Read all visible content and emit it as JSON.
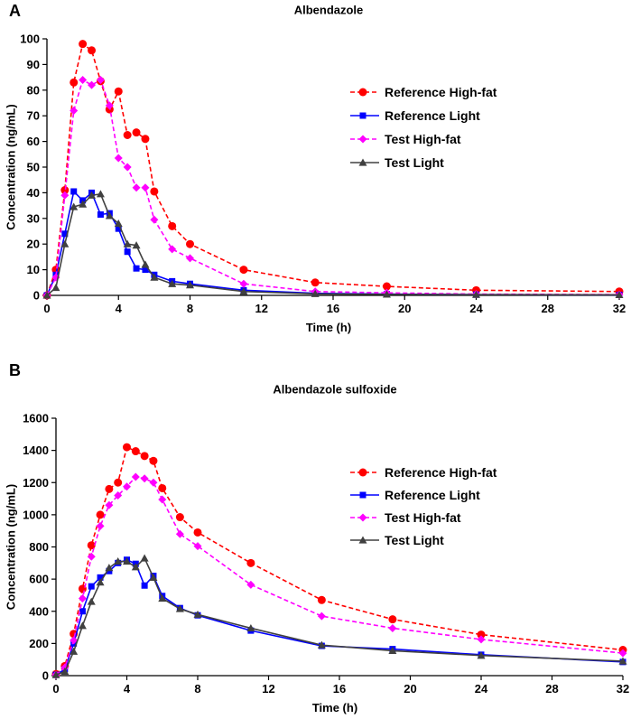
{
  "chart_data": [
    {
      "type": "line",
      "panel_label": "A",
      "title": "Albendazole",
      "xlabel": "Time (h)",
      "ylabel": "Concentration (ng/mL)",
      "xlim": [
        0,
        32
      ],
      "ylim": [
        0,
        100
      ],
      "xticks": [
        0,
        4,
        8,
        12,
        16,
        20,
        24,
        28,
        32
      ],
      "yticks": [
        0,
        10,
        20,
        30,
        40,
        50,
        60,
        70,
        80,
        90,
        100
      ],
      "legend_position": "top-right",
      "series": [
        {
          "name": "Reference High-fat",
          "color": "#ff0000",
          "dashed": true,
          "marker": "circle",
          "x": [
            0,
            0.5,
            1,
            1.5,
            2,
            2.5,
            3,
            3.5,
            4,
            4.5,
            5,
            5.5,
            6,
            7,
            8,
            11,
            15,
            19,
            24,
            32
          ],
          "y": [
            0,
            10,
            41,
            83,
            98,
            95.5,
            83.5,
            72.5,
            79.5,
            62.5,
            63.5,
            61,
            40.5,
            27,
            20,
            10,
            5,
            3.5,
            2,
            1.5
          ]
        },
        {
          "name": "Reference Light",
          "color": "#0000ff",
          "dashed": false,
          "marker": "square",
          "x": [
            0,
            0.5,
            1,
            1.5,
            2,
            2.5,
            3,
            3.5,
            4,
            4.5,
            5,
            5.5,
            6,
            7,
            8,
            11,
            15,
            19,
            24,
            32
          ],
          "y": [
            0,
            8,
            24,
            40.5,
            37,
            40,
            31.5,
            32,
            26,
            17,
            10.5,
            10,
            8,
            5.5,
            4.5,
            2,
            0.8,
            0.5,
            0.3,
            0.2
          ]
        },
        {
          "name": "Test High-fat",
          "color": "#ff00ff",
          "dashed": true,
          "marker": "diamond",
          "x": [
            0,
            0.5,
            1,
            1.5,
            2,
            2.5,
            3,
            3.5,
            4,
            4.5,
            5,
            5.5,
            6,
            7,
            8,
            11,
            15,
            19,
            24,
            32
          ],
          "y": [
            0,
            7,
            39,
            72,
            84,
            82,
            84,
            74,
            53.5,
            50,
            42,
            42,
            29.5,
            18,
            14.5,
            4.5,
            1.5,
            1,
            0.5,
            0.3
          ]
        },
        {
          "name": "Test Light",
          "color": "#404040",
          "dashed": false,
          "marker": "triangle",
          "x": [
            0,
            0.5,
            1,
            1.5,
            2,
            2.5,
            3,
            3.5,
            4,
            4.5,
            5,
            5.5,
            6,
            7,
            8,
            11,
            15,
            19,
            24,
            32
          ],
          "y": [
            0,
            3,
            20,
            34.5,
            35.5,
            39,
            39.5,
            31,
            28,
            20,
            19.5,
            12,
            7,
            4.5,
            4,
            1.5,
            0.6,
            0.4,
            0.3,
            0.2
          ]
        }
      ]
    },
    {
      "type": "line",
      "panel_label": "B",
      "title": "Albendazole sulfoxide",
      "xlabel": "Time (h)",
      "ylabel": "Concentration (ng/mL)",
      "xlim": [
        0,
        32
      ],
      "ylim": [
        0,
        1600
      ],
      "xticks": [
        0,
        4,
        8,
        12,
        16,
        20,
        24,
        28,
        32
      ],
      "yticks": [
        0,
        200,
        400,
        600,
        800,
        1000,
        1200,
        1400,
        1600
      ],
      "legend_position": "top-right",
      "series": [
        {
          "name": "Reference High-fat",
          "color": "#ff0000",
          "dashed": true,
          "marker": "circle",
          "x": [
            0,
            0.5,
            1,
            1.5,
            2,
            2.5,
            3,
            3.5,
            4,
            4.5,
            5,
            5.5,
            6,
            7,
            8,
            11,
            15,
            19,
            24,
            32
          ],
          "y": [
            10,
            60,
            260,
            540,
            810,
            1000,
            1160,
            1200,
            1420,
            1395,
            1365,
            1335,
            1165,
            985,
            890,
            700,
            470,
            350,
            255,
            160
          ]
        },
        {
          "name": "Reference Light",
          "color": "#0000ff",
          "dashed": false,
          "marker": "square",
          "x": [
            0,
            0.5,
            1,
            1.5,
            2,
            2.5,
            3,
            3.5,
            4,
            4.5,
            5,
            5.5,
            6,
            7,
            8,
            11,
            15,
            19,
            24,
            32
          ],
          "y": [
            5,
            40,
            200,
            400,
            555,
            610,
            650,
            700,
            720,
            695,
            560,
            620,
            495,
            420,
            375,
            280,
            185,
            165,
            130,
            85
          ]
        },
        {
          "name": "Test High-fat",
          "color": "#ff00ff",
          "dashed": true,
          "marker": "diamond",
          "x": [
            0,
            0.5,
            1,
            1.5,
            2,
            2.5,
            3,
            3.5,
            4,
            4.5,
            5,
            5.5,
            6,
            7,
            8,
            11,
            15,
            19,
            24,
            32
          ],
          "y": [
            5,
            50,
            220,
            480,
            740,
            930,
            1060,
            1120,
            1175,
            1235,
            1225,
            1200,
            1095,
            880,
            805,
            565,
            370,
            295,
            225,
            140
          ]
        },
        {
          "name": "Test Light",
          "color": "#404040",
          "dashed": false,
          "marker": "triangle",
          "x": [
            0,
            0.5,
            1,
            1.5,
            2,
            2.5,
            3,
            3.5,
            4,
            4.5,
            5,
            5.5,
            6,
            7,
            8,
            11,
            15,
            19,
            24,
            32
          ],
          "y": [
            5,
            25,
            150,
            310,
            460,
            580,
            670,
            710,
            710,
            675,
            730,
            610,
            480,
            415,
            380,
            295,
            190,
            155,
            125,
            90
          ]
        }
      ]
    }
  ]
}
